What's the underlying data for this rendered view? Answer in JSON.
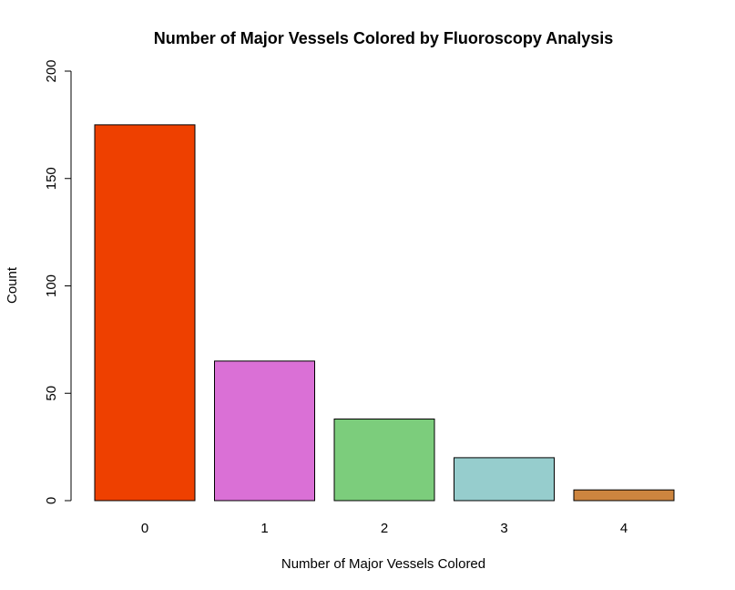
{
  "chart_data": {
    "type": "bar",
    "title": "Number of Major Vessels Colored by Fluoroscopy Analysis",
    "xlabel": "Number of Major Vessels Colored",
    "ylabel": "Count",
    "categories": [
      "0",
      "1",
      "2",
      "3",
      "4"
    ],
    "values": [
      175,
      65,
      38,
      20,
      5
    ],
    "colors": [
      "#EE4000",
      "#DA70D6",
      "#7CCD7C",
      "#96CDCD",
      "#CD853F"
    ],
    "ylim": [
      0,
      200
    ],
    "yticks": [
      "0",
      "50",
      "100",
      "150",
      "200"
    ],
    "grid": false,
    "legend": "none"
  }
}
